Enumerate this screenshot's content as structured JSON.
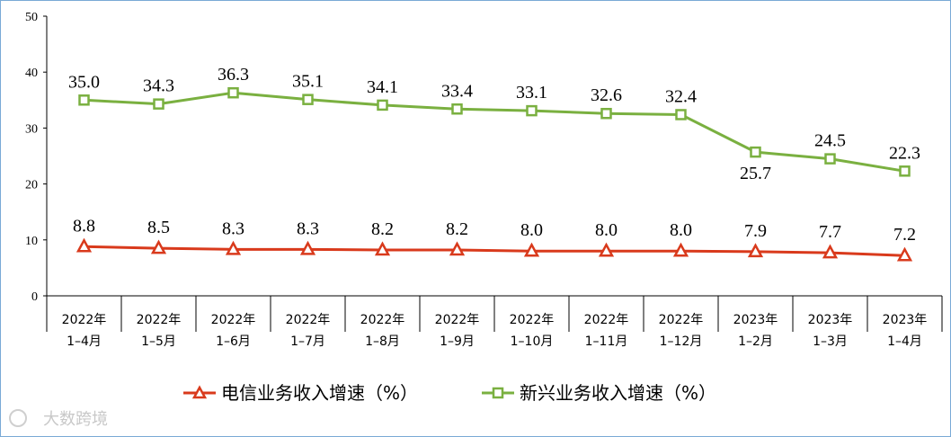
{
  "chart_data": {
    "type": "line",
    "categories": [
      [
        "2022年",
        "1–4月"
      ],
      [
        "2022年",
        "1–5月"
      ],
      [
        "2022年",
        "1–6月"
      ],
      [
        "2022年",
        "1–7月"
      ],
      [
        "2022年",
        "1–8月"
      ],
      [
        "2022年",
        "1–9月"
      ],
      [
        "2022年",
        "1–10月"
      ],
      [
        "2022年",
        "1–11月"
      ],
      [
        "2022年",
        "1–12月"
      ],
      [
        "2023年",
        "1–2月"
      ],
      [
        "2023年",
        "1–3月"
      ],
      [
        "2023年",
        "1–4月"
      ]
    ],
    "series": [
      {
        "name": "电信业务收入增速（%）",
        "color": "#d93a1c",
        "marker": "triangle",
        "values": [
          8.8,
          8.5,
          8.3,
          8.3,
          8.2,
          8.2,
          8.0,
          8.0,
          8.0,
          7.9,
          7.7,
          7.2
        ]
      },
      {
        "name": "新兴业务收入增速（%）",
        "color": "#7ab040",
        "marker": "square",
        "values": [
          35.0,
          34.3,
          36.3,
          35.1,
          34.1,
          33.4,
          33.1,
          32.6,
          32.4,
          25.7,
          24.5,
          22.3
        ]
      }
    ],
    "ylim": [
      0,
      50
    ],
    "yticks": [
      0,
      10,
      20,
      30,
      40,
      50
    ],
    "xlabel": "",
    "ylabel": "",
    "legend": "bottom",
    "grid": false
  },
  "watermark": "大数跨境"
}
